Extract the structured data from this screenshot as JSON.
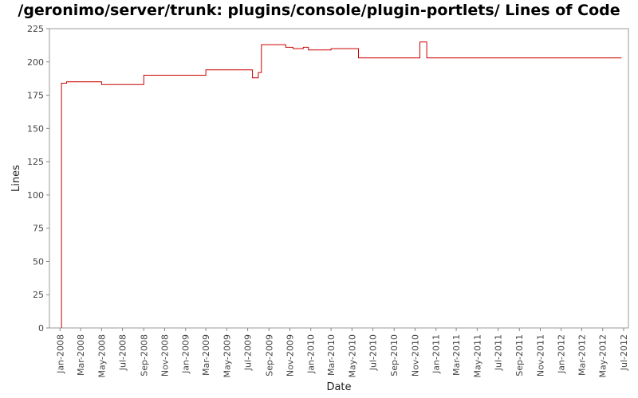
{
  "chart_data": {
    "type": "line",
    "title": "/geronimo/server/trunk: plugins/console/plugin-portlets/ Lines of Code",
    "xlabel": "Date",
    "ylabel": "Lines",
    "ylim": [
      0,
      225
    ],
    "yticks": [
      0,
      25,
      50,
      75,
      100,
      125,
      150,
      175,
      200,
      225
    ],
    "xlim": [
      "2007-12-01",
      "2012-07-15"
    ],
    "xticks": [
      "Jan-2008",
      "Mar-2008",
      "May-2008",
      "Jul-2008",
      "Sep-2008",
      "Nov-2008",
      "Jan-2009",
      "Mar-2009",
      "May-2009",
      "Jul-2009",
      "Sep-2009",
      "Nov-2009",
      "Jan-2010",
      "Mar-2010",
      "May-2010",
      "Jul-2010",
      "Sep-2010",
      "Nov-2010",
      "Jan-2011",
      "Mar-2011",
      "May-2011",
      "Jul-2011",
      "Sep-2011",
      "Nov-2011",
      "Jan-2012",
      "Mar-2012",
      "May-2012",
      "Jul-2012"
    ],
    "grid": false,
    "line_color": "#cc0000",
    "series": [
      {
        "name": "",
        "step": true,
        "points": [
          [
            "2008-01-05",
            0
          ],
          [
            "2008-01-05",
            184
          ],
          [
            "2008-01-20",
            185
          ],
          [
            "2008-05-01",
            183
          ],
          [
            "2008-09-01",
            190
          ],
          [
            "2009-03-01",
            194
          ],
          [
            "2009-07-15",
            188
          ],
          [
            "2009-08-01",
            192
          ],
          [
            "2009-08-10",
            213
          ],
          [
            "2009-10-20",
            211
          ],
          [
            "2009-11-10",
            210
          ],
          [
            "2009-12-10",
            211
          ],
          [
            "2009-12-25",
            209
          ],
          [
            "2010-03-01",
            210
          ],
          [
            "2010-05-20",
            203
          ],
          [
            "2010-11-15",
            215
          ],
          [
            "2010-12-05",
            203
          ],
          [
            "2012-06-25",
            203
          ]
        ]
      }
    ]
  }
}
